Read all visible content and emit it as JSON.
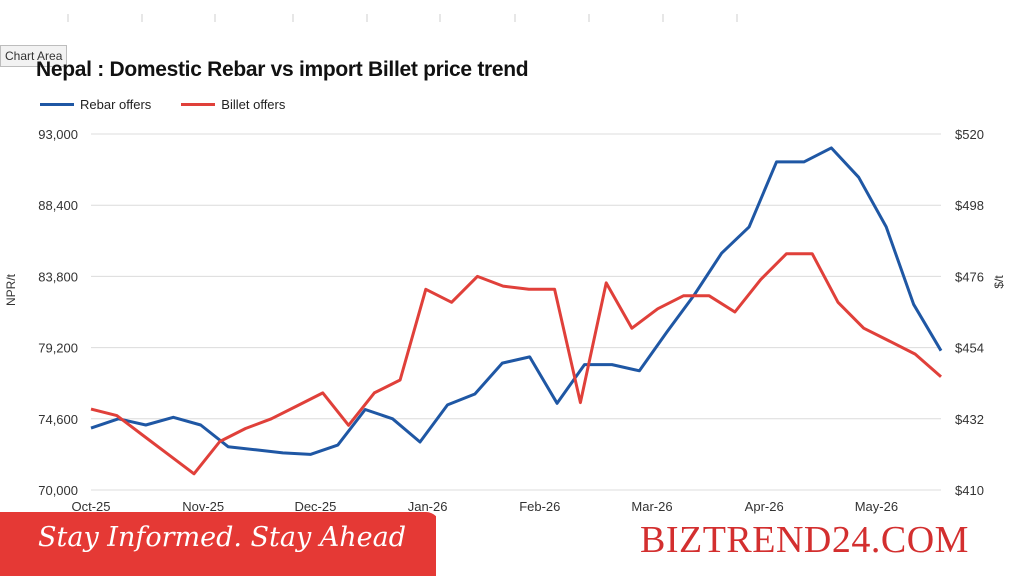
{
  "chart_area_label": "Chart Area",
  "colors": {
    "rebar": "#1f57a4",
    "billet": "#e0403a",
    "grid": "#dcdcdc",
    "footer_red": "#e53935"
  },
  "footer": {
    "slogan": "Stay Informed. Stay Ahead",
    "brand": "BIZTREND24.COM"
  },
  "chart_data": {
    "type": "line",
    "title": "Nepal : Domestic Rebar vs import Billet price trend",
    "ylabel": "NPR/t",
    "y2label": "$/t",
    "ylim": [
      70000,
      93000
    ],
    "y2lim": [
      410,
      520
    ],
    "yticks": [
      "93,000",
      "88,400",
      "83,800",
      "79,200",
      "74,600",
      "70,000"
    ],
    "y2ticks": [
      "$520",
      "$498",
      "$476",
      "$454",
      "$432",
      "$410"
    ],
    "xticks": [
      "Oct-25",
      "Nov-25",
      "Dec-25",
      "Jan-26",
      "Feb-26",
      "Mar-26",
      "Apr-26",
      "May-26"
    ],
    "grid": true,
    "legend_position": "top-left",
    "series": [
      {
        "name": "Rebar offers",
        "axis": "left",
        "values": [
          74000,
          74600,
          74200,
          74700,
          74200,
          72800,
          72600,
          72400,
          72300,
          72900,
          75200,
          74600,
          73100,
          75500,
          76200,
          78200,
          78600,
          75600,
          78100,
          78100,
          77700,
          80200,
          82600,
          85300,
          87000,
          91200,
          91200,
          92100,
          90200,
          87000,
          82000,
          79000
        ]
      },
      {
        "name": "Billet offers",
        "axis": "right",
        "values": [
          435,
          433,
          427,
          421,
          415,
          425,
          429,
          432,
          436,
          440,
          430,
          440,
          444,
          472,
          468,
          476,
          473,
          472,
          472,
          437,
          474,
          460,
          466,
          470,
          470,
          465,
          475,
          483,
          483,
          468,
          460,
          456,
          452,
          445
        ]
      }
    ]
  }
}
